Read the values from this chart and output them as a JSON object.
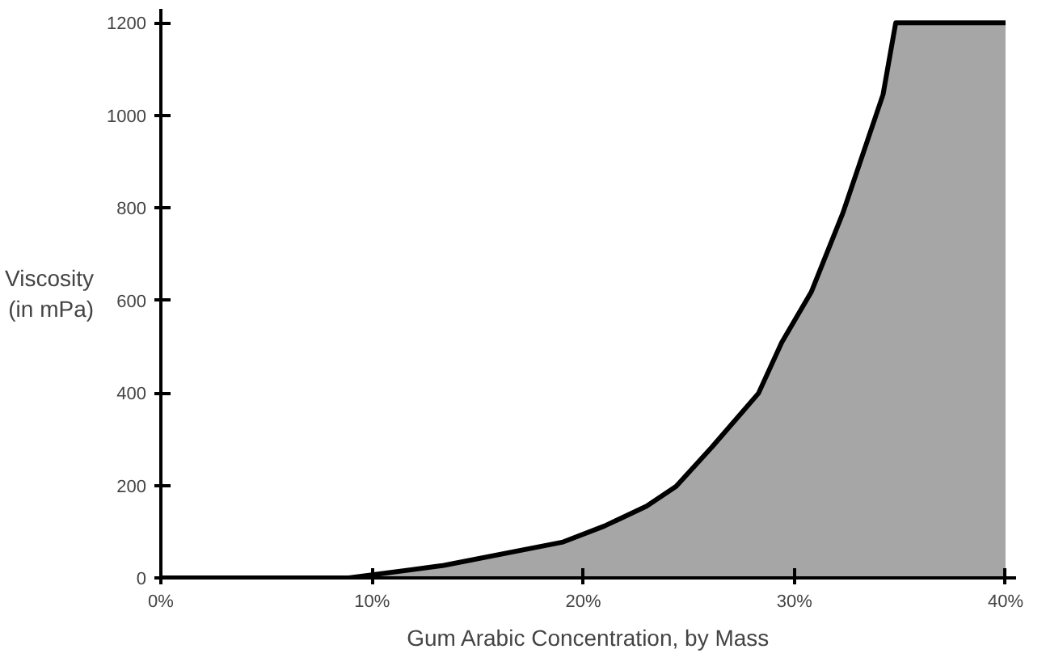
{
  "chart_data": {
    "type": "area",
    "xlabel": "Gum Arabic Concentration, by Mass",
    "ylabel": "Viscosity\n(in mPa)",
    "x": [
      0,
      8.9,
      13.4,
      19.0,
      21.0,
      23.0,
      24.4,
      26.1,
      28.3,
      29.4,
      30.8,
      32.3,
      34.2,
      34.8,
      35,
      40
    ],
    "series": [
      {
        "color": "#000000",
        "values": [
          0,
          0,
          27,
          77,
          112,
          155,
          198,
          283,
          399,
          509,
          618,
          789,
          1045,
          1200,
          1200,
          1200
        ]
      }
    ],
    "xlim": [
      0,
      40.5
    ],
    "ylim": [
      0,
      1230
    ],
    "xticks": [
      {
        "value": 0,
        "label": "0%"
      },
      {
        "value": 10,
        "label": "10%"
      },
      {
        "value": 20,
        "label": "20%"
      },
      {
        "value": 30,
        "label": "30%"
      },
      {
        "value": 40,
        "label": "40%"
      }
    ],
    "yticks": [
      0,
      200,
      400,
      600,
      800,
      1000,
      1200
    ],
    "grid": false
  }
}
